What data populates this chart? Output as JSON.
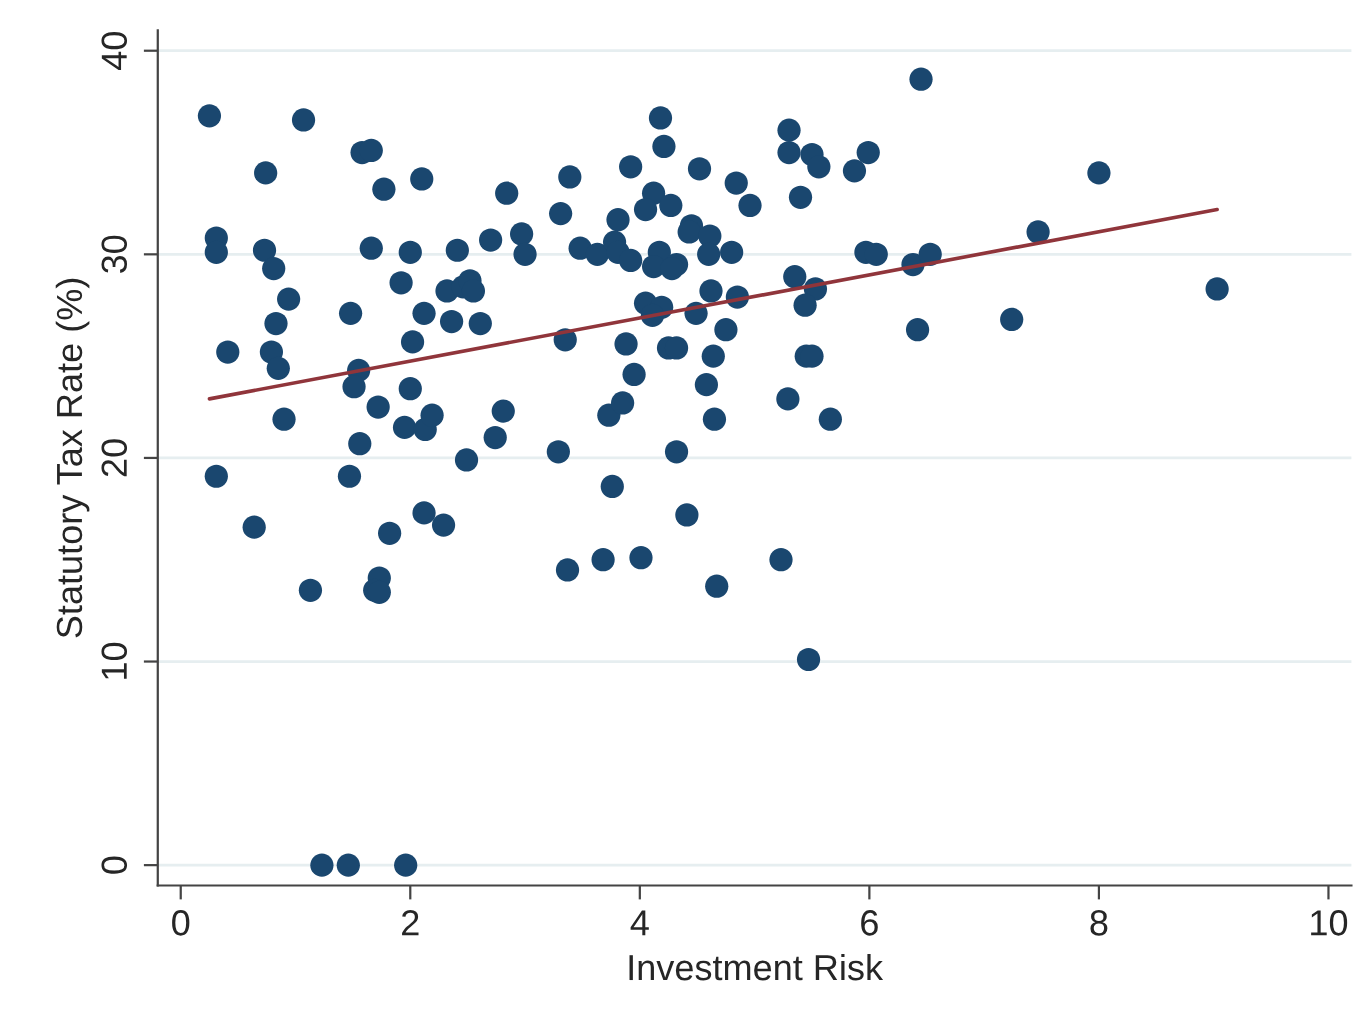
{
  "chart_data": {
    "type": "scatter",
    "xlabel": "Investment Risk",
    "ylabel": "Statutory Tax Rate (%)",
    "xlim": [
      -0.2,
      10.2
    ],
    "ylim": [
      -1,
      41
    ],
    "xticks": [
      0,
      2,
      4,
      6,
      8,
      10
    ],
    "yticks": [
      0,
      10,
      20,
      30,
      40
    ],
    "grid": "y",
    "legend": false,
    "series": [
      {
        "color": "#1a476f",
        "marker": "circle",
        "x": [
          0.25,
          1.07,
          0.31,
          0.31,
          0.41,
          0.9,
          0.74,
          0.73,
          0.81,
          0.94,
          0.83,
          0.79,
          0.85,
          1.48,
          1.55,
          1.51,
          1.56,
          1.58,
          1.66,
          1.77,
          1.66,
          2.1,
          1.92,
          2.0,
          2.12,
          2.02,
          2.0,
          1.72,
          1.95,
          2.13,
          2.19,
          2.36,
          2.32,
          2.41,
          2.46,
          2.52,
          2.55,
          2.61,
          2.7,
          2.84,
          2.97,
          3.0,
          2.81,
          2.74,
          2.49,
          0.31,
          0.64,
          1.13,
          1.47,
          1.82,
          1.73,
          1.69,
          1.73,
          2.12,
          2.29,
          3.29,
          3.37,
          3.76,
          3.68,
          4.01,
          4.32,
          4.41,
          4.67,
          1.23,
          1.46,
          1.96,
          3.39,
          3.31,
          3.48,
          3.63,
          3.35,
          3.73,
          3.85,
          3.95,
          3.88,
          3.81,
          3.78,
          3.81,
          3.92,
          3.92,
          4.18,
          4.21,
          4.12,
          4.05,
          4.27,
          4.17,
          4.12,
          4.32,
          4.28,
          4.05,
          4.19,
          4.11,
          4.25,
          4.32,
          4.52,
          4.45,
          4.43,
          4.61,
          4.6,
          4.49,
          4.62,
          4.75,
          4.64,
          4.58,
          4.65,
          4.84,
          4.96,
          4.8,
          4.85,
          5.3,
          5.3,
          5.5,
          5.56,
          5.4,
          5.35,
          5.53,
          5.44,
          5.45,
          5.5,
          5.29,
          5.66,
          5.87,
          5.99,
          5.97,
          6.06,
          6.38,
          6.42,
          6.45,
          6.53,
          7.47,
          7.24,
          8.0,
          9.03,
          5.23,
          5.47
        ],
        "values": [
          36.8,
          36.6,
          30.8,
          30.1,
          25.2,
          21.9,
          34.0,
          30.2,
          29.3,
          27.8,
          26.6,
          25.2,
          24.4,
          27.1,
          24.3,
          23.5,
          20.7,
          35.0,
          35.1,
          33.2,
          30.3,
          33.7,
          28.6,
          30.1,
          27.1,
          25.7,
          23.4,
          22.5,
          21.5,
          21.4,
          22.1,
          26.7,
          28.2,
          30.2,
          28.4,
          28.7,
          28.2,
          26.6,
          30.7,
          33.0,
          31.0,
          30.0,
          22.3,
          21.0,
          19.9,
          19.1,
          16.6,
          13.5,
          19.1,
          16.3,
          14.1,
          13.5,
          13.4,
          17.3,
          16.7,
          20.3,
          14.5,
          18.6,
          15.0,
          15.1,
          20.3,
          17.2,
          13.7,
          0,
          0,
          0,
          33.8,
          32.0,
          30.3,
          30.0,
          25.8,
          22.1,
          22.7,
          24.1,
          25.6,
          31.7,
          30.6,
          30.1,
          29.7,
          34.3,
          36.7,
          35.3,
          33.0,
          32.2,
          32.4,
          30.1,
          29.4,
          29.5,
          29.3,
          27.6,
          27.4,
          27.0,
          25.4,
          25.4,
          34.2,
          31.4,
          31.1,
          30.9,
          30.0,
          27.1,
          28.2,
          26.3,
          25.0,
          23.6,
          21.9,
          33.5,
          32.4,
          30.1,
          27.9,
          36.1,
          35.0,
          34.9,
          34.3,
          32.8,
          28.9,
          28.3,
          27.5,
          25.0,
          25.0,
          22.9,
          21.9,
          34.1,
          35.0,
          30.1,
          30.0,
          29.5,
          26.3,
          38.6,
          30.0,
          31.1,
          26.8,
          34.0,
          28.3,
          15.0,
          10.1
        ]
      },
      {
        "type": "line",
        "marker": "none",
        "color": "#90353b",
        "x": [
          0.25,
          9.03
        ],
        "values": [
          22.9,
          32.2
        ]
      }
    ]
  }
}
